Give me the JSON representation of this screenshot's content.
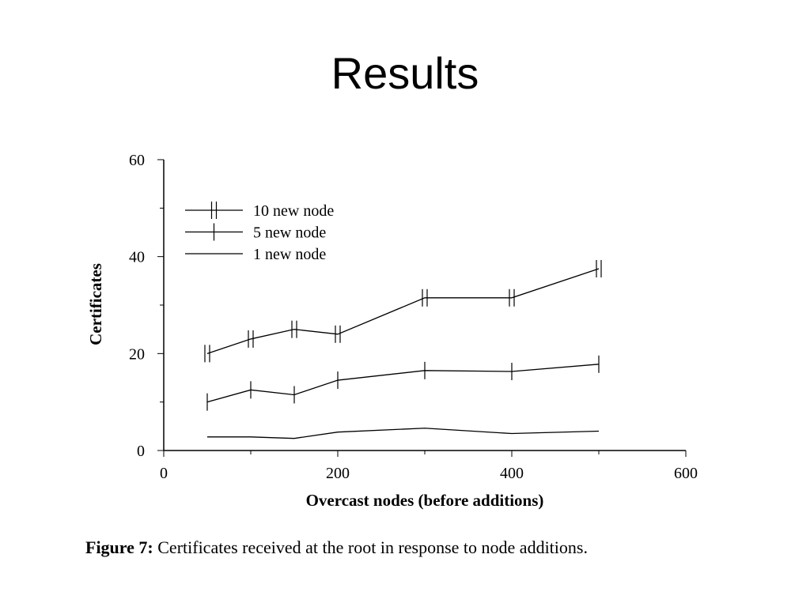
{
  "slide": {
    "title": "Results"
  },
  "figure": {
    "caption_label": "Figure 7:",
    "caption_text": "Certificates received at the root in response to node additions."
  },
  "chart_data": {
    "type": "line",
    "xlabel": "Overcast nodes (before additions)",
    "ylabel": "Certificates",
    "xlim": [
      0,
      600
    ],
    "ylim": [
      0,
      60
    ],
    "xticks": [
      0,
      200,
      400,
      600
    ],
    "yticks": [
      0,
      20,
      40,
      60
    ],
    "grid": false,
    "legend_position": "top-left",
    "x": [
      50,
      100,
      150,
      200,
      300,
      400,
      500
    ],
    "series": [
      {
        "name": "10 new node",
        "marker": "double-bar",
        "values": [
          20,
          23,
          25,
          24,
          31.5,
          31.5,
          37.5
        ]
      },
      {
        "name": "5 new node",
        "marker": "bar",
        "values": [
          10,
          12.5,
          11.5,
          14.5,
          16.5,
          16.3,
          17.8
        ]
      },
      {
        "name": "1 new node",
        "marker": "none",
        "values": [
          2.8,
          2.8,
          2.5,
          3.8,
          4.6,
          3.5,
          4.0
        ]
      }
    ]
  }
}
